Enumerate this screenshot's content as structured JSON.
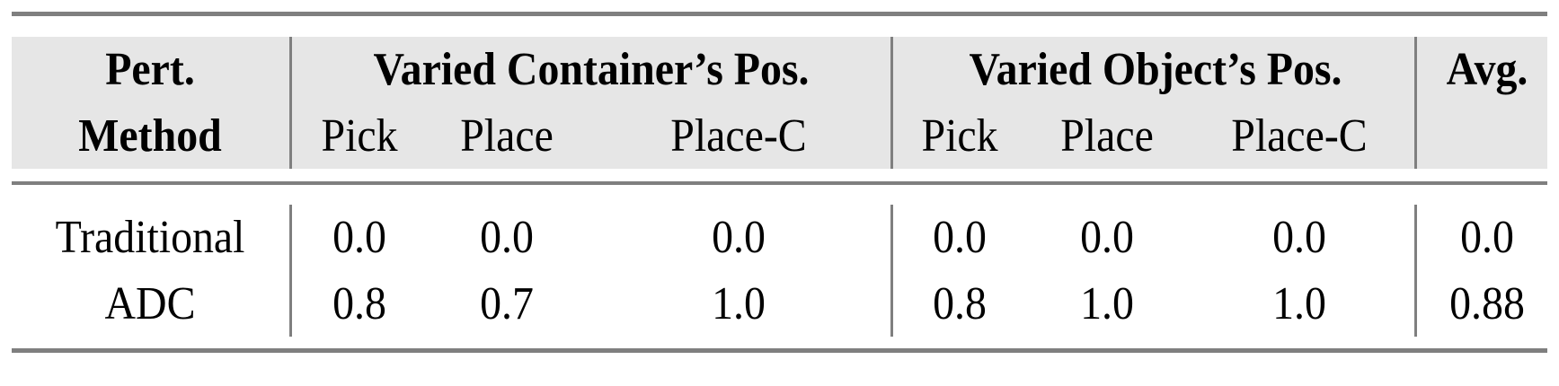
{
  "header": {
    "method_line1": "Pert.",
    "method_line2": "Method",
    "group1": "Varied Container’s Pos.",
    "group2": "Varied Object’s Pos.",
    "avg": "Avg.",
    "subcols": [
      "Pick",
      "Place",
      "Place-C",
      "Pick",
      "Place",
      "Place-C"
    ]
  },
  "rows": [
    {
      "method": "Traditional",
      "values": [
        "0.0",
        "0.0",
        "0.0",
        "0.0",
        "0.0",
        "0.0",
        "0.0"
      ]
    },
    {
      "method": "ADC",
      "values": [
        "0.8",
        "0.7",
        "1.0",
        "0.8",
        "1.0",
        "1.0",
        "0.88"
      ]
    }
  ]
}
